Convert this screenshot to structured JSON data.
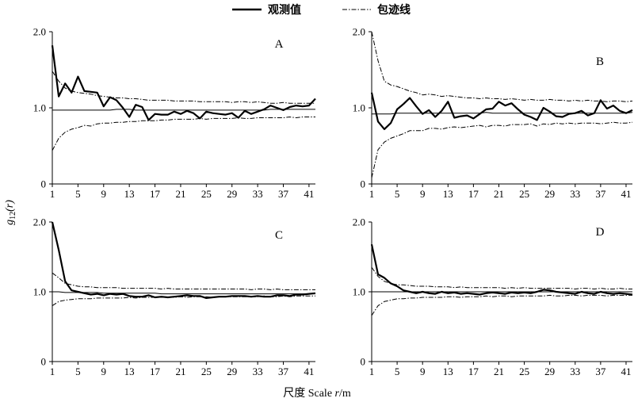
{
  "legend": {
    "observed": "观测值",
    "envelope": "包迹线"
  },
  "xlabel_prefix": "尺度 Scale ",
  "xlabel_var": "r",
  "xlabel_unit": "/m",
  "ylabel_main": "g",
  "ylabel_sub": "12",
  "ylabel_arg": "(r)",
  "chart_data": [
    {
      "type": "line",
      "panel": "A",
      "x": [
        1,
        2,
        3,
        4,
        5,
        6,
        7,
        8,
        9,
        10,
        11,
        12,
        13,
        14,
        15,
        16,
        17,
        18,
        19,
        20,
        21,
        22,
        23,
        24,
        25,
        26,
        27,
        28,
        29,
        30,
        31,
        32,
        33,
        34,
        35,
        36,
        37,
        38,
        39,
        40,
        41,
        42
      ],
      "ylim": [
        0,
        2.0
      ],
      "yticks": [
        "0",
        "1.0",
        "2.0"
      ],
      "xticks": [
        1,
        5,
        9,
        13,
        17,
        21,
        25,
        29,
        33,
        37,
        41
      ],
      "series": [
        {
          "role": "observed",
          "values": [
            1.82,
            1.15,
            1.32,
            1.2,
            1.41,
            1.22,
            1.21,
            1.2,
            1.02,
            1.14,
            1.1,
            1.0,
            0.88,
            1.04,
            1.01,
            0.84,
            0.92,
            0.91,
            0.91,
            0.95,
            0.92,
            0.96,
            0.93,
            0.86,
            0.95,
            0.93,
            0.92,
            0.91,
            0.93,
            0.87,
            0.96,
            0.92,
            0.95,
            0.98,
            1.03,
            1.0,
            0.97,
            1.01,
            1.03,
            1.02,
            1.03,
            1.12
          ]
        },
        {
          "role": "theoretical",
          "values": [
            0.97,
            0.97,
            0.97,
            0.97,
            0.97,
            0.97,
            0.97,
            0.97,
            0.97,
            0.97,
            0.98,
            0.98,
            0.98,
            0.97,
            0.97,
            0.97,
            0.97,
            0.97,
            0.97,
            0.97,
            0.97,
            0.97,
            0.97,
            0.97,
            0.97,
            0.97,
            0.97,
            0.97,
            0.97,
            0.97,
            0.97,
            0.97,
            0.97,
            0.97,
            0.98,
            0.98,
            0.98,
            0.98,
            0.98,
            0.98,
            0.98,
            0.98
          ]
        },
        {
          "role": "envelope-upper",
          "values": [
            1.48,
            1.35,
            1.26,
            1.22,
            1.2,
            1.19,
            1.18,
            1.16,
            1.15,
            1.14,
            1.13,
            1.13,
            1.12,
            1.12,
            1.11,
            1.1,
            1.1,
            1.1,
            1.1,
            1.09,
            1.09,
            1.09,
            1.09,
            1.08,
            1.08,
            1.08,
            1.08,
            1.08,
            1.07,
            1.08,
            1.08,
            1.07,
            1.08,
            1.07,
            1.06,
            1.06,
            1.07,
            1.06,
            1.06,
            1.06,
            1.06,
            1.06
          ]
        },
        {
          "role": "envelope-lower",
          "values": [
            0.44,
            0.6,
            0.68,
            0.72,
            0.74,
            0.77,
            0.76,
            0.79,
            0.8,
            0.8,
            0.81,
            0.81,
            0.82,
            0.82,
            0.83,
            0.83,
            0.83,
            0.84,
            0.84,
            0.85,
            0.85,
            0.85,
            0.85,
            0.86,
            0.85,
            0.86,
            0.86,
            0.86,
            0.86,
            0.87,
            0.86,
            0.86,
            0.87,
            0.87,
            0.87,
            0.87,
            0.87,
            0.88,
            0.87,
            0.88,
            0.88,
            0.88
          ]
        }
      ]
    },
    {
      "type": "line",
      "panel": "B",
      "x": [
        1,
        2,
        3,
        4,
        5,
        6,
        7,
        8,
        9,
        10,
        11,
        12,
        13,
        14,
        15,
        16,
        17,
        18,
        19,
        20,
        21,
        22,
        23,
        24,
        25,
        26,
        27,
        28,
        29,
        30,
        31,
        32,
        33,
        34,
        35,
        36,
        37,
        38,
        39,
        40,
        41,
        42
      ],
      "ylim": [
        0,
        2.0
      ],
      "yticks": [
        "0",
        "1.0",
        "2.0"
      ],
      "xticks": [
        1,
        5,
        9,
        13,
        17,
        21,
        25,
        29,
        33,
        37,
        41
      ],
      "series": [
        {
          "role": "observed",
          "values": [
            1.2,
            0.82,
            0.72,
            0.8,
            0.98,
            1.05,
            1.13,
            1.02,
            0.92,
            0.97,
            0.88,
            0.96,
            1.08,
            0.87,
            0.89,
            0.9,
            0.86,
            0.92,
            0.98,
            0.99,
            1.08,
            1.03,
            1.06,
            0.98,
            0.91,
            0.88,
            0.84,
            1.0,
            0.95,
            0.89,
            0.88,
            0.92,
            0.93,
            0.96,
            0.9,
            0.93,
            1.1,
            0.99,
            1.03,
            0.96,
            0.93,
            0.97
          ]
        },
        {
          "role": "theoretical",
          "values": [
            0.92,
            0.92,
            0.92,
            0.92,
            0.93,
            0.93,
            0.93,
            0.93,
            0.93,
            0.93,
            0.93,
            0.93,
            0.93,
            0.93,
            0.93,
            0.93,
            0.93,
            0.93,
            0.94,
            0.93,
            0.93,
            0.93,
            0.93,
            0.93,
            0.93,
            0.93,
            0.93,
            0.93,
            0.93,
            0.93,
            0.93,
            0.93,
            0.93,
            0.93,
            0.93,
            0.93,
            0.93,
            0.93,
            0.93,
            0.93,
            0.93,
            0.94
          ]
        },
        {
          "role": "envelope-upper",
          "values": [
            2.0,
            1.62,
            1.35,
            1.3,
            1.28,
            1.25,
            1.22,
            1.2,
            1.17,
            1.18,
            1.17,
            1.15,
            1.16,
            1.15,
            1.14,
            1.13,
            1.13,
            1.12,
            1.13,
            1.12,
            1.12,
            1.11,
            1.12,
            1.11,
            1.1,
            1.11,
            1.1,
            1.1,
            1.11,
            1.1,
            1.1,
            1.09,
            1.1,
            1.09,
            1.1,
            1.09,
            1.09,
            1.08,
            1.09,
            1.09,
            1.08,
            1.09
          ]
        },
        {
          "role": "envelope-lower",
          "values": [
            0.08,
            0.45,
            0.55,
            0.6,
            0.63,
            0.66,
            0.7,
            0.7,
            0.7,
            0.73,
            0.73,
            0.72,
            0.74,
            0.75,
            0.74,
            0.75,
            0.76,
            0.77,
            0.75,
            0.77,
            0.77,
            0.76,
            0.78,
            0.78,
            0.78,
            0.79,
            0.76,
            0.79,
            0.78,
            0.8,
            0.79,
            0.8,
            0.79,
            0.8,
            0.8,
            0.8,
            0.79,
            0.8,
            0.81,
            0.8,
            0.8,
            0.81
          ]
        }
      ]
    },
    {
      "type": "line",
      "panel": "C",
      "x": [
        1,
        2,
        3,
        4,
        5,
        6,
        7,
        8,
        9,
        10,
        11,
        12,
        13,
        14,
        15,
        16,
        17,
        18,
        19,
        20,
        21,
        22,
        23,
        24,
        25,
        26,
        27,
        28,
        29,
        30,
        31,
        32,
        33,
        34,
        35,
        36,
        37,
        38,
        39,
        40,
        41,
        42
      ],
      "ylim": [
        0,
        2.0
      ],
      "yticks": [
        "0",
        "1.0",
        "2.0"
      ],
      "xticks": [
        1,
        5,
        9,
        13,
        17,
        21,
        25,
        29,
        33,
        37,
        41
      ],
      "series": [
        {
          "role": "observed",
          "values": [
            2.0,
            1.6,
            1.15,
            1.02,
            1.0,
            0.98,
            0.96,
            0.97,
            0.95,
            0.97,
            0.96,
            0.97,
            0.94,
            0.93,
            0.93,
            0.95,
            0.92,
            0.93,
            0.92,
            0.93,
            0.94,
            0.95,
            0.94,
            0.94,
            0.91,
            0.92,
            0.93,
            0.93,
            0.94,
            0.94,
            0.94,
            0.93,
            0.94,
            0.93,
            0.93,
            0.95,
            0.95,
            0.94,
            0.96,
            0.96,
            0.97,
            0.98
          ]
        },
        {
          "role": "theoretical",
          "values": [
            1.0,
            1.0,
            0.99,
            0.99,
            0.99,
            0.99,
            0.99,
            0.99,
            0.98,
            0.98,
            0.98,
            0.98,
            0.98,
            0.98,
            0.98,
            0.98,
            0.98,
            0.97,
            0.97,
            0.97,
            0.97,
            0.97,
            0.97,
            0.97,
            0.97,
            0.97,
            0.97,
            0.97,
            0.97,
            0.97,
            0.97,
            0.97,
            0.97,
            0.97,
            0.97,
            0.97,
            0.97,
            0.97,
            0.97,
            0.97,
            0.97,
            0.97
          ]
        },
        {
          "role": "envelope-upper",
          "values": [
            1.27,
            1.2,
            1.12,
            1.1,
            1.08,
            1.07,
            1.07,
            1.06,
            1.06,
            1.06,
            1.06,
            1.05,
            1.05,
            1.05,
            1.05,
            1.05,
            1.05,
            1.04,
            1.05,
            1.04,
            1.04,
            1.04,
            1.04,
            1.04,
            1.04,
            1.04,
            1.04,
            1.04,
            1.04,
            1.04,
            1.04,
            1.03,
            1.04,
            1.04,
            1.03,
            1.04,
            1.03,
            1.03,
            1.03,
            1.03,
            1.03,
            1.03
          ]
        },
        {
          "role": "envelope-lower",
          "values": [
            0.8,
            0.86,
            0.88,
            0.89,
            0.9,
            0.9,
            0.9,
            0.91,
            0.91,
            0.91,
            0.91,
            0.91,
            0.92,
            0.91,
            0.92,
            0.92,
            0.92,
            0.92,
            0.92,
            0.92,
            0.93,
            0.92,
            0.93,
            0.93,
            0.93,
            0.92,
            0.93,
            0.93,
            0.93,
            0.93,
            0.93,
            0.93,
            0.93,
            0.94,
            0.93,
            0.93,
            0.94,
            0.93,
            0.94,
            0.94,
            0.94,
            0.94
          ]
        }
      ]
    },
    {
      "type": "line",
      "panel": "D",
      "x": [
        1,
        2,
        3,
        4,
        5,
        6,
        7,
        8,
        9,
        10,
        11,
        12,
        13,
        14,
        15,
        16,
        17,
        18,
        19,
        20,
        21,
        22,
        23,
        24,
        25,
        26,
        27,
        28,
        29,
        30,
        31,
        32,
        33,
        34,
        35,
        36,
        37,
        38,
        39,
        40,
        41,
        42
      ],
      "ylim": [
        0,
        2.0
      ],
      "yticks": [
        "0",
        "1.0",
        "2.0"
      ],
      "xticks": [
        1,
        5,
        9,
        13,
        17,
        21,
        25,
        29,
        33,
        37,
        41
      ],
      "series": [
        {
          "role": "observed",
          "values": [
            1.68,
            1.25,
            1.2,
            1.12,
            1.08,
            1.02,
            1.0,
            0.98,
            1.0,
            0.98,
            0.97,
            1.0,
            0.98,
            0.99,
            0.97,
            0.98,
            0.97,
            0.96,
            0.98,
            0.99,
            0.98,
            0.97,
            0.99,
            0.98,
            0.99,
            0.98,
            1.0,
            1.03,
            1.02,
            1.0,
            0.99,
            0.98,
            0.97,
            1.0,
            0.98,
            0.97,
            1.0,
            0.98,
            0.97,
            0.98,
            0.97,
            0.96
          ]
        },
        {
          "role": "theoretical",
          "values": [
            1.0,
            1.0,
            1.0,
            1.0,
            1.0,
            1.0,
            1.0,
            1.0,
            1.0,
            1.0,
            1.0,
            1.0,
            1.0,
            1.0,
            1.0,
            1.0,
            1.0,
            1.0,
            1.0,
            1.0,
            1.0,
            1.0,
            1.0,
            1.0,
            1.0,
            1.0,
            1.0,
            1.0,
            1.0,
            1.0,
            1.0,
            1.0,
            1.0,
            1.0,
            1.0,
            1.0,
            1.0,
            1.0,
            1.0,
            1.0,
            1.0,
            1.0
          ]
        },
        {
          "role": "envelope-upper",
          "values": [
            1.35,
            1.22,
            1.15,
            1.12,
            1.1,
            1.1,
            1.09,
            1.08,
            1.08,
            1.08,
            1.07,
            1.07,
            1.07,
            1.06,
            1.07,
            1.06,
            1.06,
            1.06,
            1.06,
            1.06,
            1.06,
            1.05,
            1.06,
            1.05,
            1.06,
            1.05,
            1.05,
            1.05,
            1.05,
            1.05,
            1.05,
            1.05,
            1.04,
            1.05,
            1.05,
            1.04,
            1.05,
            1.04,
            1.04,
            1.05,
            1.04,
            1.04
          ]
        },
        {
          "role": "envelope-lower",
          "values": [
            0.66,
            0.8,
            0.86,
            0.88,
            0.9,
            0.9,
            0.91,
            0.91,
            0.92,
            0.92,
            0.92,
            0.92,
            0.93,
            0.93,
            0.92,
            0.93,
            0.93,
            0.93,
            0.94,
            0.93,
            0.94,
            0.94,
            0.93,
            0.94,
            0.94,
            0.94,
            0.94,
            0.94,
            0.95,
            0.94,
            0.94,
            0.95,
            0.95,
            0.94,
            0.95,
            0.95,
            0.95,
            0.94,
            0.95,
            0.95,
            0.95,
            0.95
          ]
        }
      ]
    }
  ]
}
